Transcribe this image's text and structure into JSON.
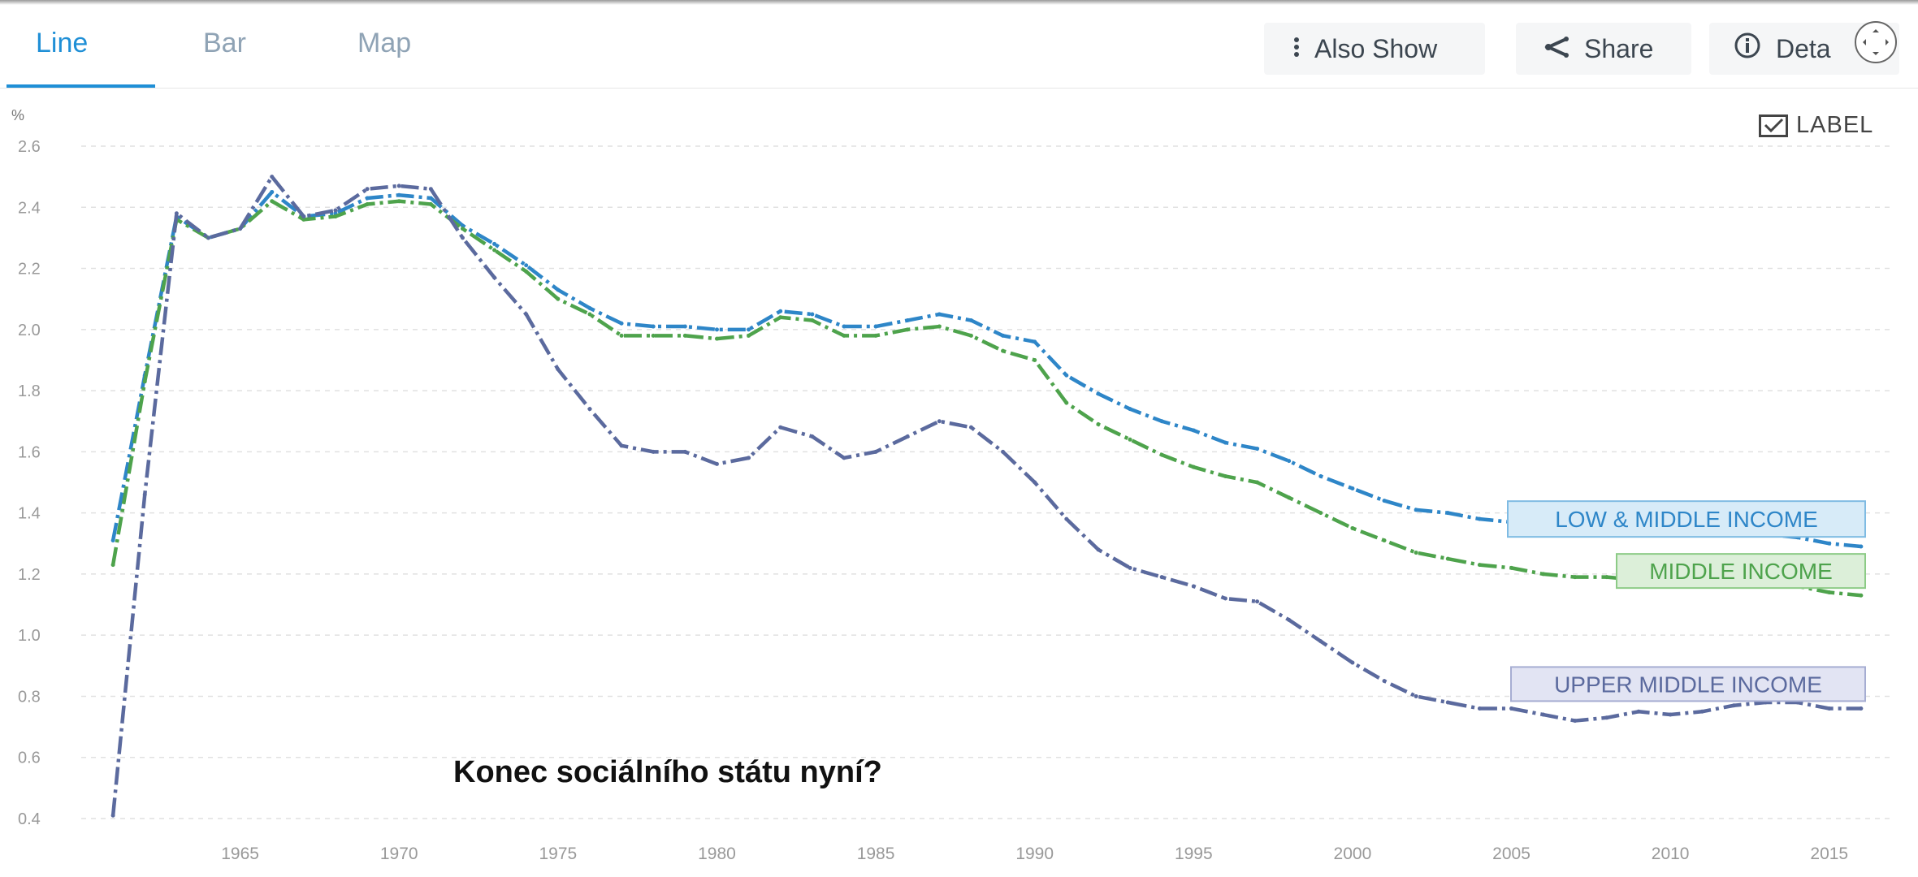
{
  "tabs": [
    {
      "label": "Line",
      "active": true
    },
    {
      "label": "Bar",
      "active": false
    },
    {
      "label": "Map",
      "active": false
    }
  ],
  "actions": {
    "also_show": "Also Show",
    "share": "Share",
    "details": "Deta"
  },
  "label_toggle": {
    "label": "LABEL",
    "checked": true
  },
  "caption": "Konec sociálního státu nyní?",
  "colors": {
    "accent": "#1f8fd6",
    "low_middle": "#2e86c8",
    "middle": "#4ea34c",
    "upper_middle": "#5b6a9e"
  },
  "chart_data": {
    "type": "line",
    "y_unit": "%",
    "ylim": [
      0.4,
      2.6
    ],
    "yticks": [
      "0.4",
      "0.6",
      "0.8",
      "1.0",
      "1.2",
      "1.4",
      "1.6",
      "1.8",
      "2.0",
      "2.2",
      "2.4",
      "2.6"
    ],
    "xlim": [
      1960,
      2017
    ],
    "xticks": [
      "1965",
      "1970",
      "1975",
      "1980",
      "1985",
      "1990",
      "1995",
      "2000",
      "2005",
      "2010",
      "2015"
    ],
    "grid": true,
    "x": [
      1961,
      1962,
      1963,
      1964,
      1965,
      1966,
      1967,
      1968,
      1969,
      1970,
      1971,
      1972,
      1973,
      1974,
      1975,
      1976,
      1977,
      1978,
      1979,
      1980,
      1981,
      1982,
      1983,
      1984,
      1985,
      1986,
      1987,
      1988,
      1989,
      1990,
      1991,
      1992,
      1993,
      1994,
      1995,
      1996,
      1997,
      1998,
      1999,
      2000,
      2001,
      2002,
      2003,
      2004,
      2005,
      2006,
      2007,
      2008,
      2009,
      2010,
      2011,
      2012,
      2013,
      2014,
      2015,
      2016
    ],
    "series": [
      {
        "name": "LOW & MIDDLE INCOME",
        "color": "#2e86c8",
        "values": [
          1.31,
          1.85,
          2.37,
          2.3,
          2.33,
          2.45,
          2.37,
          2.38,
          2.43,
          2.44,
          2.43,
          2.34,
          2.28,
          2.21,
          2.13,
          2.07,
          2.02,
          2.01,
          2.01,
          2.0,
          2.0,
          2.06,
          2.05,
          2.01,
          2.01,
          2.03,
          2.05,
          2.03,
          1.98,
          1.96,
          1.85,
          1.79,
          1.74,
          1.7,
          1.67,
          1.63,
          1.61,
          1.57,
          1.52,
          1.48,
          1.44,
          1.41,
          1.4,
          1.38,
          1.37,
          1.35,
          1.34,
          1.33,
          1.33,
          1.34,
          1.33,
          1.33,
          1.33,
          1.32,
          1.3,
          1.29
        ]
      },
      {
        "name": "MIDDLE INCOME",
        "color": "#4ea34c",
        "values": [
          1.23,
          1.83,
          2.36,
          2.3,
          2.33,
          2.42,
          2.36,
          2.37,
          2.41,
          2.42,
          2.41,
          2.33,
          2.26,
          2.19,
          2.1,
          2.05,
          1.98,
          1.98,
          1.98,
          1.97,
          1.98,
          2.04,
          2.03,
          1.98,
          1.98,
          2.0,
          2.01,
          1.98,
          1.93,
          1.9,
          1.76,
          1.69,
          1.64,
          1.59,
          1.55,
          1.52,
          1.5,
          1.45,
          1.4,
          1.35,
          1.31,
          1.27,
          1.25,
          1.23,
          1.22,
          1.2,
          1.19,
          1.19,
          1.18,
          1.18,
          1.18,
          1.18,
          1.17,
          1.16,
          1.14,
          1.13
        ]
      },
      {
        "name": "UPPER MIDDLE INCOME",
        "color": "#5b6a9e",
        "values": [
          0.41,
          1.46,
          2.38,
          2.3,
          2.33,
          2.5,
          2.37,
          2.39,
          2.46,
          2.47,
          2.46,
          2.3,
          2.17,
          2.05,
          1.87,
          1.74,
          1.62,
          1.6,
          1.6,
          1.56,
          1.58,
          1.68,
          1.65,
          1.58,
          1.6,
          1.65,
          1.7,
          1.68,
          1.6,
          1.5,
          1.38,
          1.28,
          1.22,
          1.19,
          1.16,
          1.12,
          1.11,
          1.05,
          0.98,
          0.91,
          0.85,
          0.8,
          0.78,
          0.76,
          0.76,
          0.74,
          0.72,
          0.73,
          0.75,
          0.74,
          0.75,
          0.77,
          0.78,
          0.78,
          0.76,
          0.76
        ]
      }
    ]
  }
}
